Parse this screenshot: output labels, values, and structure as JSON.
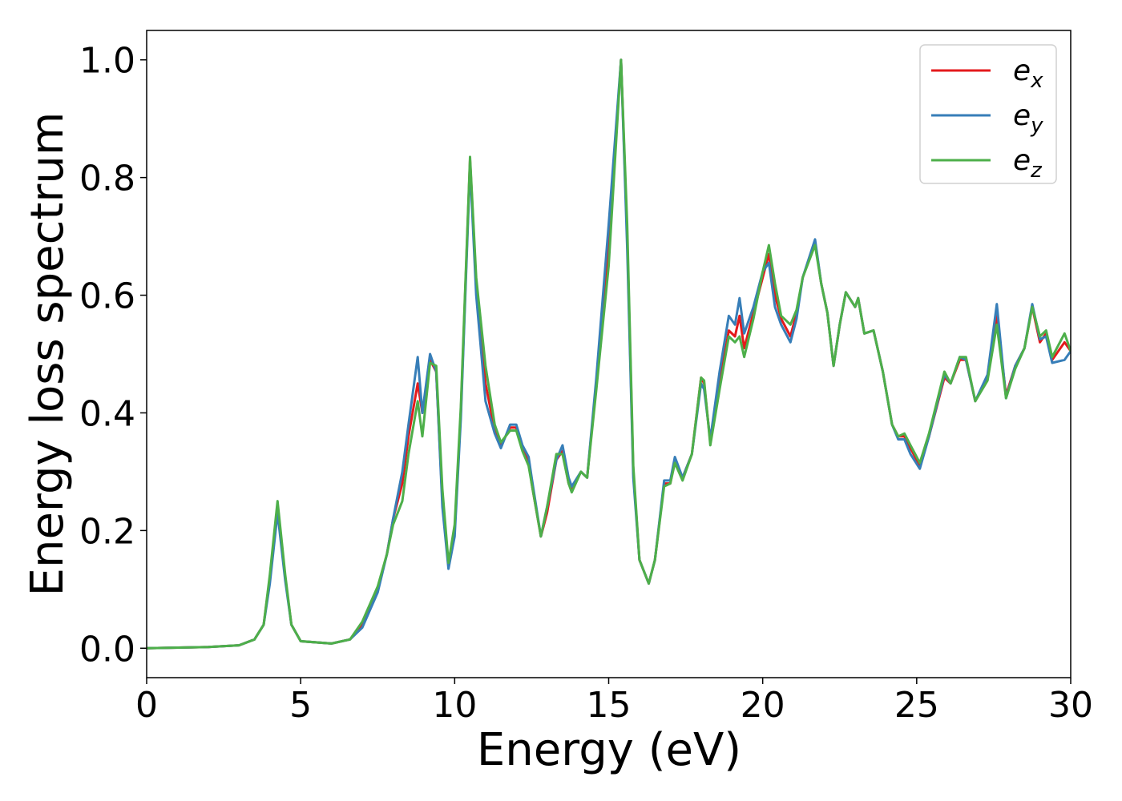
{
  "chart_data": {
    "type": "line",
    "x_label": "Energy (eV)",
    "y_label": "Energy loss spectrum",
    "x": [
      0,
      2,
      3,
      3.5,
      3.8,
      4.0,
      4.25,
      4.5,
      4.7,
      5,
      6,
      6.6,
      7,
      7.5,
      7.8,
      8.0,
      8.3,
      8.5,
      8.8,
      8.95,
      9.2,
      9.4,
      9.6,
      9.8,
      10.0,
      10.2,
      10.5,
      10.7,
      11,
      11.3,
      11.5,
      11.8,
      12.0,
      12.2,
      12.4,
      12.5,
      12.8,
      13.0,
      13.3,
      13.5,
      13.7,
      13.8,
      14.1,
      14.3,
      14.6,
      15.0,
      15.4,
      15.6,
      15.8,
      16.0,
      16.3,
      16.5,
      16.8,
      17.0,
      17.15,
      17.4,
      17.7,
      18.0,
      18.1,
      18.3,
      18.6,
      18.9,
      19.1,
      19.25,
      19.4,
      19.7,
      20.0,
      20.2,
      20.4,
      20.6,
      20.9,
      21.1,
      21.3,
      21.7,
      21.9,
      22.1,
      22.3,
      22.5,
      22.7,
      23.0,
      23.1,
      23.3,
      23.6,
      23.9,
      24.2,
      24.4,
      24.6,
      24.8,
      25.1,
      25.4,
      25.9,
      26.1,
      26.4,
      26.6,
      26.9,
      27.3,
      27.6,
      27.9,
      28.2,
      28.5,
      28.75,
      29.0,
      29.2,
      29.4,
      29.8,
      30
    ],
    "series": [
      {
        "name": "e_x",
        "color": "#e41a1c",
        "values": [
          0,
          0.002,
          0.005,
          0.015,
          0.04,
          0.12,
          0.245,
          0.12,
          0.04,
          0.012,
          0.008,
          0.015,
          0.04,
          0.1,
          0.16,
          0.22,
          0.28,
          0.36,
          0.45,
          0.4,
          0.49,
          0.47,
          0.25,
          0.14,
          0.2,
          0.4,
          0.83,
          0.62,
          0.45,
          0.37,
          0.345,
          0.375,
          0.375,
          0.34,
          0.32,
          0.28,
          0.19,
          0.23,
          0.32,
          0.335,
          0.28,
          0.27,
          0.3,
          0.29,
          0.45,
          0.68,
          1.0,
          0.7,
          0.3,
          0.15,
          0.11,
          0.15,
          0.28,
          0.28,
          0.32,
          0.29,
          0.33,
          0.46,
          0.45,
          0.35,
          0.45,
          0.54,
          0.53,
          0.565,
          0.51,
          0.57,
          0.63,
          0.67,
          0.6,
          0.56,
          0.53,
          0.57,
          0.63,
          0.69,
          0.62,
          0.57,
          0.48,
          0.55,
          0.605,
          0.58,
          0.595,
          0.535,
          0.54,
          0.47,
          0.38,
          0.36,
          0.36,
          0.34,
          0.31,
          0.36,
          0.46,
          0.45,
          0.49,
          0.49,
          0.42,
          0.46,
          0.565,
          0.43,
          0.48,
          0.51,
          0.58,
          0.52,
          0.535,
          0.49,
          0.52,
          0.505
        ]
      },
      {
        "name": "e_y",
        "color": "#377eb8",
        "values": [
          0,
          0.002,
          0.005,
          0.015,
          0.04,
          0.11,
          0.23,
          0.115,
          0.04,
          0.012,
          0.008,
          0.015,
          0.035,
          0.095,
          0.16,
          0.22,
          0.3,
          0.38,
          0.495,
          0.4,
          0.5,
          0.47,
          0.24,
          0.135,
          0.19,
          0.39,
          0.82,
          0.6,
          0.42,
          0.365,
          0.34,
          0.38,
          0.38,
          0.345,
          0.325,
          0.29,
          0.19,
          0.24,
          0.32,
          0.345,
          0.29,
          0.275,
          0.3,
          0.29,
          0.46,
          0.72,
          1.0,
          0.68,
          0.29,
          0.15,
          0.11,
          0.15,
          0.285,
          0.285,
          0.325,
          0.29,
          0.33,
          0.45,
          0.44,
          0.355,
          0.47,
          0.565,
          0.55,
          0.595,
          0.535,
          0.58,
          0.64,
          0.655,
          0.58,
          0.55,
          0.52,
          0.56,
          0.63,
          0.695,
          0.62,
          0.57,
          0.48,
          0.55,
          0.605,
          0.58,
          0.595,
          0.535,
          0.54,
          0.47,
          0.38,
          0.355,
          0.355,
          0.33,
          0.305,
          0.36,
          0.465,
          0.45,
          0.495,
          0.49,
          0.42,
          0.465,
          0.585,
          0.425,
          0.48,
          0.51,
          0.585,
          0.525,
          0.53,
          0.485,
          0.49,
          0.505
        ]
      },
      {
        "name": "e_z",
        "color": "#4daf4a",
        "values": [
          0,
          0.002,
          0.005,
          0.015,
          0.04,
          0.125,
          0.25,
          0.125,
          0.04,
          0.012,
          0.008,
          0.015,
          0.045,
          0.105,
          0.16,
          0.21,
          0.25,
          0.33,
          0.42,
          0.36,
          0.485,
          0.48,
          0.27,
          0.145,
          0.21,
          0.41,
          0.835,
          0.63,
          0.48,
          0.38,
          0.35,
          0.37,
          0.37,
          0.335,
          0.31,
          0.28,
          0.19,
          0.24,
          0.33,
          0.33,
          0.28,
          0.265,
          0.3,
          0.29,
          0.44,
          0.65,
          1.0,
          0.72,
          0.31,
          0.15,
          0.11,
          0.15,
          0.275,
          0.28,
          0.315,
          0.285,
          0.33,
          0.46,
          0.455,
          0.345,
          0.44,
          0.53,
          0.52,
          0.53,
          0.495,
          0.56,
          0.64,
          0.685,
          0.62,
          0.565,
          0.55,
          0.575,
          0.63,
          0.685,
          0.62,
          0.57,
          0.48,
          0.55,
          0.605,
          0.58,
          0.595,
          0.535,
          0.54,
          0.47,
          0.38,
          0.36,
          0.365,
          0.345,
          0.315,
          0.365,
          0.47,
          0.45,
          0.495,
          0.495,
          0.42,
          0.455,
          0.55,
          0.425,
          0.475,
          0.51,
          0.58,
          0.53,
          0.54,
          0.495,
          0.535,
          0.505
        ]
      }
    ],
    "xlim": [
      0,
      30
    ],
    "xticks": [
      0,
      5,
      10,
      15,
      20,
      25,
      30
    ],
    "ylim": [
      -0.05,
      1.05
    ],
    "yticks": [
      {
        "value": 0,
        "label": "0.0"
      },
      0.2,
      0.4,
      0.6,
      0.8,
      {
        "value": 1,
        "label": "1.0"
      }
    ],
    "legend": "upper right",
    "grid": false
  }
}
